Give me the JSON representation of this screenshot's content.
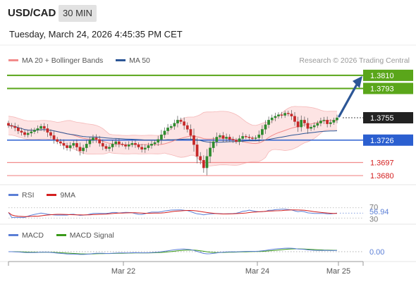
{
  "header": {
    "symbol": "USD/CAD",
    "timeframe": "30 MIN",
    "timestamp": "Tuesday, March 24, 2026 4:45:35 PM CET"
  },
  "legend_main": [
    {
      "label": "MA 20 + Bollinger Bands",
      "color": "#f28b8b"
    },
    {
      "label": "MA 50",
      "color": "#2c5696"
    }
  ],
  "copyright": "Research © 2026 Trading Central",
  "legend_rsi": [
    {
      "label": "RSI",
      "color": "#5b7fd6"
    },
    {
      "label": "9MA",
      "color": "#d42020"
    }
  ],
  "legend_macd": [
    {
      "label": "MACD",
      "color": "#5b7fd6"
    },
    {
      "label": "MACD Signal",
      "color": "#3a9a1a"
    }
  ],
  "colors": {
    "resistance": "#5aa61a",
    "support_red": "#f28b8b",
    "pivot_blue": "#2b5fd0",
    "price_box": "#222222",
    "up_candle": "#2e8b2e",
    "down_candle": "#c62828",
    "band_fill": "#fde4e4",
    "forecast_arrow": "#2c5696"
  },
  "chart_data": {
    "type": "candlestick",
    "price_range": [
      1.367,
      1.383
    ],
    "x_ticks": [
      "Mar 22",
      "Mar 24",
      "Mar 25"
    ],
    "levels": [
      {
        "value": 1.381,
        "label": "1.3810",
        "kind": "resistance"
      },
      {
        "value": 1.3793,
        "label": "1.3793",
        "kind": "resistance"
      },
      {
        "value": 1.3755,
        "label": "1.3755",
        "kind": "last"
      },
      {
        "value": 1.3726,
        "label": "1.3726",
        "kind": "pivot"
      },
      {
        "value": 1.3697,
        "label": "1.3697",
        "kind": "support"
      },
      {
        "value": 1.368,
        "label": "1.3680",
        "kind": "support"
      }
    ],
    "forecast_target": 1.381,
    "rsi": {
      "value": "56.94",
      "levels": [
        "70",
        "30"
      ]
    },
    "macd": {
      "value": "0.00"
    },
    "closes": [
      1.3745,
      1.3744,
      1.3742,
      1.3738,
      1.3736,
      1.3733,
      1.3735,
      1.3737,
      1.3739,
      1.3741,
      1.3744,
      1.3741,
      1.3736,
      1.3732,
      1.3727,
      1.3724,
      1.3722,
      1.3719,
      1.3716,
      1.3719,
      1.3722,
      1.3717,
      1.3712,
      1.3716,
      1.3721,
      1.3726,
      1.3729,
      1.3727,
      1.3722,
      1.3718,
      1.3715,
      1.3717,
      1.3721,
      1.3724,
      1.3721,
      1.372,
      1.3718,
      1.372,
      1.3722,
      1.372,
      1.3717,
      1.3714,
      1.3716,
      1.3719,
      1.3721,
      1.3723,
      1.3727,
      1.3733,
      1.3738,
      1.3742,
      1.3744,
      1.3748,
      1.3752,
      1.375,
      1.3745,
      1.374,
      1.3732,
      1.372,
      1.3705,
      1.37,
      1.369,
      1.3705,
      1.3716,
      1.3724,
      1.373,
      1.3732,
      1.3728,
      1.373,
      1.3727,
      1.3726,
      1.3724,
      1.3728,
      1.3731,
      1.373,
      1.3729,
      1.3728,
      1.3729,
      1.3733,
      1.374,
      1.3746,
      1.3752,
      1.3755,
      1.3757,
      1.3759,
      1.3758,
      1.3761,
      1.376,
      1.3757,
      1.375,
      1.3743,
      1.3752,
      1.3748,
      1.3741,
      1.3743,
      1.3745,
      1.3748,
      1.3751,
      1.3752,
      1.3747,
      1.3749,
      1.3752,
      1.3755
    ]
  }
}
